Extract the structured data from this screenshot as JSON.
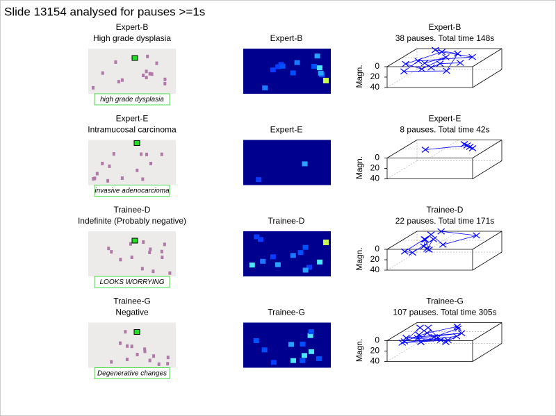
{
  "title": "Slide 13154 analysed for pauses >=1s",
  "panels": [
    {
      "observer": "Expert-B",
      "diagnosis": "High grade dysplasia",
      "annotation": "high grade dysplasia",
      "heatmap_title": "Expert-B",
      "plot": {
        "title_observer": "Expert-B",
        "title_summary": "38 pauses. Total time 148s",
        "zlabel": "Magn.",
        "zlim": [
          0,
          40
        ],
        "zticks": [
          0,
          20,
          40
        ]
      }
    },
    {
      "observer": "Expert-E",
      "diagnosis": "Intramucosal carcinoma",
      "annotation": "invasive adenocarcioma",
      "heatmap_title": "Expert-E",
      "plot": {
        "title_observer": "Expert-E",
        "title_summary": "8 pauses. Total time 42s",
        "zlabel": "Magn.",
        "zlim": [
          0,
          40
        ],
        "zticks": [
          0,
          20,
          40
        ]
      }
    },
    {
      "observer": "Trainee-D",
      "diagnosis": "Indefinite (Probably negative)",
      "annotation": "LOOKS WORRYING",
      "heatmap_title": "Trainee-D",
      "plot": {
        "title_observer": "Trainee-D",
        "title_summary": "22 pauses. Total time 171s",
        "zlabel": "Magn.",
        "zlim": [
          0,
          40
        ],
        "zticks": [
          0,
          20,
          40
        ]
      }
    },
    {
      "observer": "Trainee-G",
      "diagnosis": "Negative",
      "annotation": "Degenerative changes",
      "heatmap_title": "Trainee-G",
      "plot": {
        "title_observer": "Trainee-G",
        "title_summary": "107 pauses. Total time 305s",
        "zlabel": "Magn.",
        "zlim": [
          0,
          40
        ],
        "zticks": [
          0,
          20,
          40
        ]
      }
    }
  ]
}
